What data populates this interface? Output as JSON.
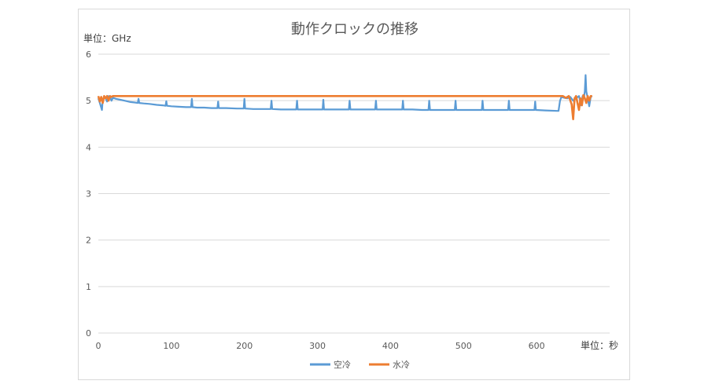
{
  "chart_data": {
    "type": "line",
    "title": "動作クロックの推移",
    "ylabel": "単位：GHz",
    "xlabel": "単位：秒",
    "xlim": [
      0,
      700
    ],
    "ylim": [
      0,
      6
    ],
    "x_ticks": [
      0,
      100,
      200,
      300,
      400,
      500,
      600
    ],
    "y_ticks": [
      0,
      1,
      2,
      3,
      4,
      5,
      6
    ],
    "grid": true,
    "legend": "bottom",
    "series": [
      {
        "name": "空冷",
        "color": "#5b9bd5",
        "points": [
          [
            0,
            5.05
          ],
          [
            2,
            4.95
          ],
          [
            4,
            4.85
          ],
          [
            5,
            4.8
          ],
          [
            6,
            5.02
          ],
          [
            8,
            5.08
          ],
          [
            10,
            5.05
          ],
          [
            12,
            4.98
          ],
          [
            14,
            5.1
          ],
          [
            16,
            5.08
          ],
          [
            18,
            5.0
          ],
          [
            20,
            5.06
          ],
          [
            24,
            5.04
          ],
          [
            30,
            5.02
          ],
          [
            36,
            5.0
          ],
          [
            44,
            4.97
          ],
          [
            50,
            4.96
          ],
          [
            54,
            4.95
          ],
          [
            55,
            5.04
          ],
          [
            56,
            4.95
          ],
          [
            62,
            4.94
          ],
          [
            70,
            4.93
          ],
          [
            80,
            4.91
          ],
          [
            88,
            4.9
          ],
          [
            92,
            4.89
          ],
          [
            93,
            4.99
          ],
          [
            94,
            4.89
          ],
          [
            100,
            4.88
          ],
          [
            110,
            4.87
          ],
          [
            120,
            4.86
          ],
          [
            127,
            4.86
          ],
          [
            128,
            5.04
          ],
          [
            129,
            4.86
          ],
          [
            135,
            4.85
          ],
          [
            145,
            4.85
          ],
          [
            155,
            4.84
          ],
          [
            163,
            4.84
          ],
          [
            164,
            4.98
          ],
          [
            165,
            4.84
          ],
          [
            175,
            4.84
          ],
          [
            190,
            4.83
          ],
          [
            199,
            4.83
          ],
          [
            200,
            5.04
          ],
          [
            201,
            4.83
          ],
          [
            212,
            4.82
          ],
          [
            225,
            4.82
          ],
          [
            236,
            4.82
          ],
          [
            237,
            5.0
          ],
          [
            238,
            4.82
          ],
          [
            250,
            4.81
          ],
          [
            262,
            4.81
          ],
          [
            271,
            4.81
          ],
          [
            272,
            5.0
          ],
          [
            273,
            4.81
          ],
          [
            285,
            4.81
          ],
          [
            298,
            4.81
          ],
          [
            307,
            4.81
          ],
          [
            308,
            5.02
          ],
          [
            309,
            4.81
          ],
          [
            320,
            4.81
          ],
          [
            333,
            4.81
          ],
          [
            343,
            4.81
          ],
          [
            344,
            5.0
          ],
          [
            345,
            4.81
          ],
          [
            355,
            4.81
          ],
          [
            368,
            4.81
          ],
          [
            379,
            4.81
          ],
          [
            380,
            5.0
          ],
          [
            381,
            4.81
          ],
          [
            395,
            4.81
          ],
          [
            405,
            4.81
          ],
          [
            416,
            4.81
          ],
          [
            417,
            5.0
          ],
          [
            418,
            4.81
          ],
          [
            430,
            4.81
          ],
          [
            443,
            4.8
          ],
          [
            452,
            4.8
          ],
          [
            453,
            5.0
          ],
          [
            454,
            4.8
          ],
          [
            466,
            4.8
          ],
          [
            478,
            4.8
          ],
          [
            488,
            4.8
          ],
          [
            489,
            5.0
          ],
          [
            490,
            4.8
          ],
          [
            502,
            4.8
          ],
          [
            515,
            4.8
          ],
          [
            525,
            4.8
          ],
          [
            526,
            5.0
          ],
          [
            527,
            4.8
          ],
          [
            540,
            4.8
          ],
          [
            552,
            4.8
          ],
          [
            561,
            4.8
          ],
          [
            562,
            5.0
          ],
          [
            563,
            4.8
          ],
          [
            575,
            4.8
          ],
          [
            588,
            4.8
          ],
          [
            597,
            4.8
          ],
          [
            598,
            4.98
          ],
          [
            599,
            4.8
          ],
          [
            612,
            4.79
          ],
          [
            628,
            4.78
          ],
          [
            630,
            4.78
          ],
          [
            632,
            5.0
          ],
          [
            634,
            5.08
          ],
          [
            638,
            5.06
          ],
          [
            642,
            5.05
          ],
          [
            646,
            5.08
          ],
          [
            650,
            5.0
          ],
          [
            654,
            5.05
          ],
          [
            658,
            5.1
          ],
          [
            661,
            4.9
          ],
          [
            663,
            5.1
          ],
          [
            665,
            5.08
          ],
          [
            666,
            5.2
          ],
          [
            667,
            5.55
          ],
          [
            668,
            5.2
          ],
          [
            670,
            5.05
          ],
          [
            672,
            4.88
          ],
          [
            674,
            5.08
          ],
          [
            676,
            5.1
          ]
        ]
      },
      {
        "name": "水冷",
        "color": "#ed7d31",
        "points": [
          [
            0,
            5.1
          ],
          [
            2,
            4.98
          ],
          [
            4,
            5.08
          ],
          [
            6,
            4.95
          ],
          [
            8,
            5.1
          ],
          [
            10,
            5.05
          ],
          [
            12,
            5.1
          ],
          [
            14,
            5.0
          ],
          [
            16,
            5.1
          ],
          [
            18,
            5.08
          ],
          [
            20,
            5.1
          ],
          [
            630,
            5.1
          ],
          [
            636,
            5.1
          ],
          [
            640,
            5.06
          ],
          [
            644,
            5.1
          ],
          [
            648,
            4.92
          ],
          [
            650,
            4.6
          ],
          [
            652,
            5.05
          ],
          [
            654,
            5.1
          ],
          [
            656,
            4.95
          ],
          [
            658,
            4.8
          ],
          [
            660,
            5.05
          ],
          [
            662,
            4.9
          ],
          [
            664,
            5.12
          ],
          [
            666,
            5.05
          ],
          [
            668,
            4.95
          ],
          [
            670,
            5.1
          ],
          [
            672,
            5.0
          ],
          [
            674,
            5.1
          ],
          [
            676,
            5.1
          ]
        ]
      }
    ]
  }
}
